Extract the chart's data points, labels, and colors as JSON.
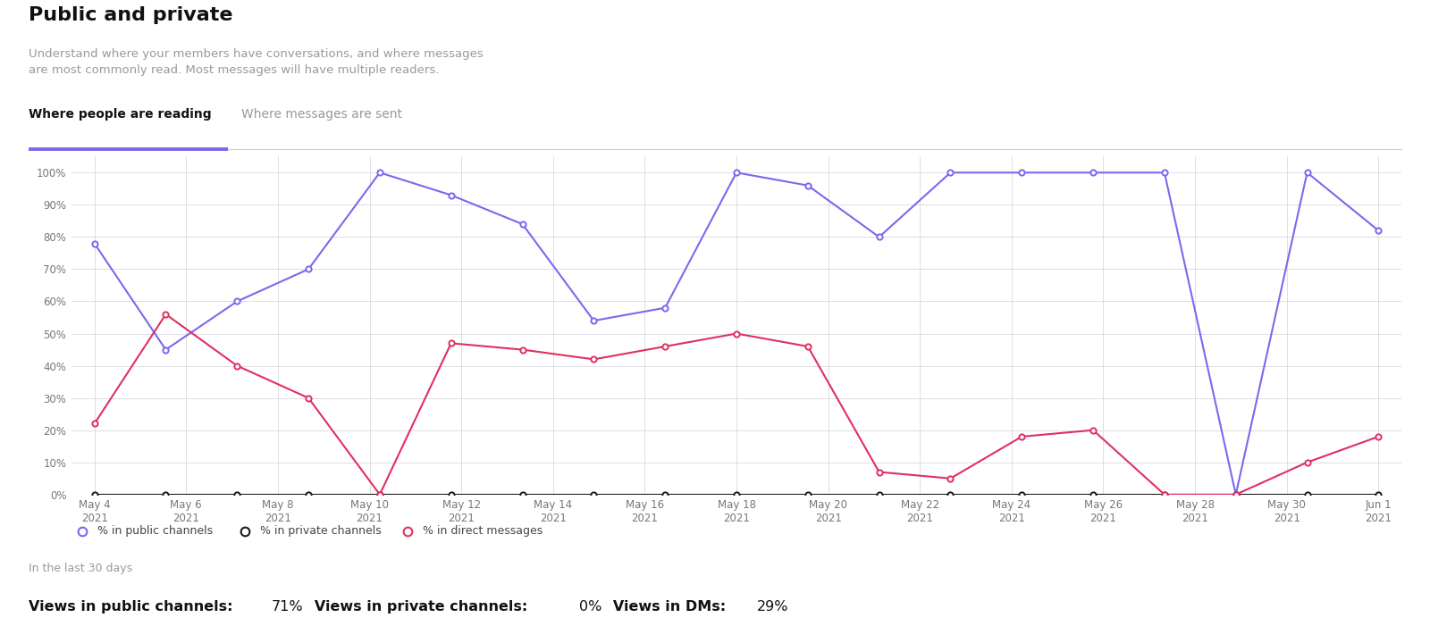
{
  "title": "Public and private",
  "subtitle": "Understand where your members have conversations, and where messages\nare most commonly read. Most messages will have multiple readers.",
  "tab_active": "Where people are reading",
  "tab_inactive": "Where messages are sent",
  "x_labels": [
    "May 4\n2021",
    "May 6\n2021",
    "May 8\n2021",
    "May 10\n2021",
    "May 12\n2021",
    "May 14\n2021",
    "May 16\n2021",
    "May 18\n2021",
    "May 20\n2021",
    "May 22\n2021",
    "May 24\n2021",
    "May 26\n2021",
    "May 28\n2021",
    "May 30\n2021",
    "Jun 1\n2021"
  ],
  "public_channels": [
    78,
    45,
    60,
    70,
    100,
    93,
    84,
    54,
    58,
    100,
    96,
    80,
    100,
    100,
    100,
    100,
    0,
    100,
    82
  ],
  "private_channels": [
    0,
    0,
    0,
    0,
    0,
    0,
    0,
    0,
    0,
    0,
    0,
    0,
    0,
    0,
    0,
    0,
    0,
    0,
    0
  ],
  "direct_messages": [
    22,
    56,
    40,
    30,
    0,
    47,
    45,
    42,
    46,
    50,
    46,
    7,
    5,
    18,
    20,
    0,
    0,
    10,
    18
  ],
  "public_color": "#7B68EE",
  "private_color": "#1a1a1a",
  "direct_color": "#e03060",
  "background_color": "#ffffff",
  "grid_color": "#d8d8e0",
  "tab_underline_color": "#7B68EE",
  "footer_text": "In the last 30 days",
  "yticks": [
    0,
    10,
    20,
    30,
    40,
    50,
    60,
    70,
    80,
    90,
    100
  ],
  "ylim": [
    0,
    105
  ]
}
